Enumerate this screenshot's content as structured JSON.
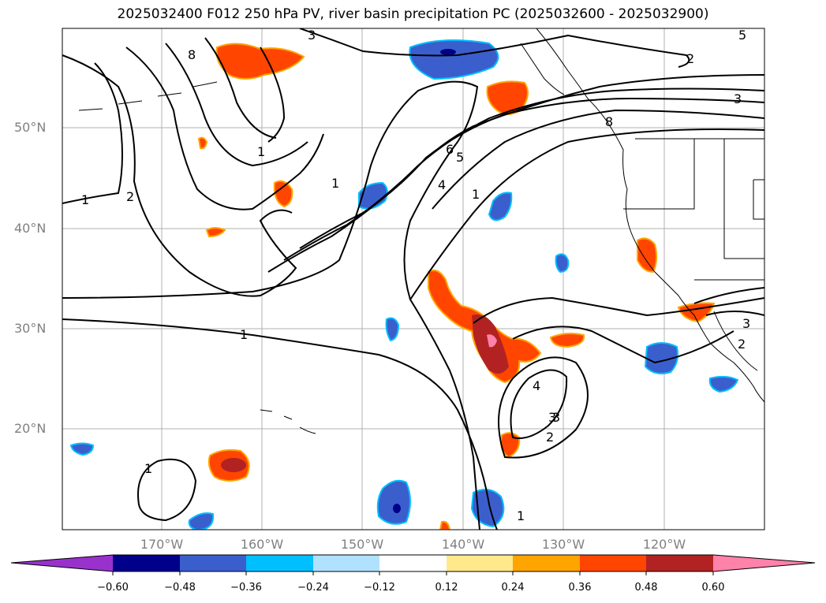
{
  "title": "2025032400 F012 250 hPa PV, river basin precipitation PC (2025032600 - 2025032900)",
  "lat_labels": [
    "50°N",
    "40°N",
    "30°N",
    "20°N"
  ],
  "lon_labels": [
    "170°W",
    "160°W",
    "150°W",
    "140°W",
    "130°W",
    "120°W"
  ],
  "contour_labels": [
    "1",
    "2",
    "1",
    "1",
    "1",
    "3",
    "4",
    "5",
    "6",
    "1",
    "8",
    "3",
    "2",
    "3",
    "4",
    "3",
    "2",
    "1",
    "1",
    "8",
    "5",
    "3",
    "2"
  ],
  "colorbar": {
    "tick_labels": [
      "−0.60",
      "−0.48",
      "−0.36",
      "−0.24",
      "−0.12",
      "0.12",
      "0.24",
      "0.36",
      "0.48",
      "0.60"
    ],
    "colors": [
      "#9932CC",
      "#00008B",
      "#3A5FCD",
      "#00BFFF",
      "#B0E2FF",
      "#FFFFFF",
      "#FFE98C",
      "#FFA500",
      "#FF4500",
      "#B22222",
      "#FF82AB"
    ]
  },
  "map": {
    "land_color": "#FFFFFF",
    "grid_color": "#B0B0B0",
    "contour_color": "#000000"
  }
}
